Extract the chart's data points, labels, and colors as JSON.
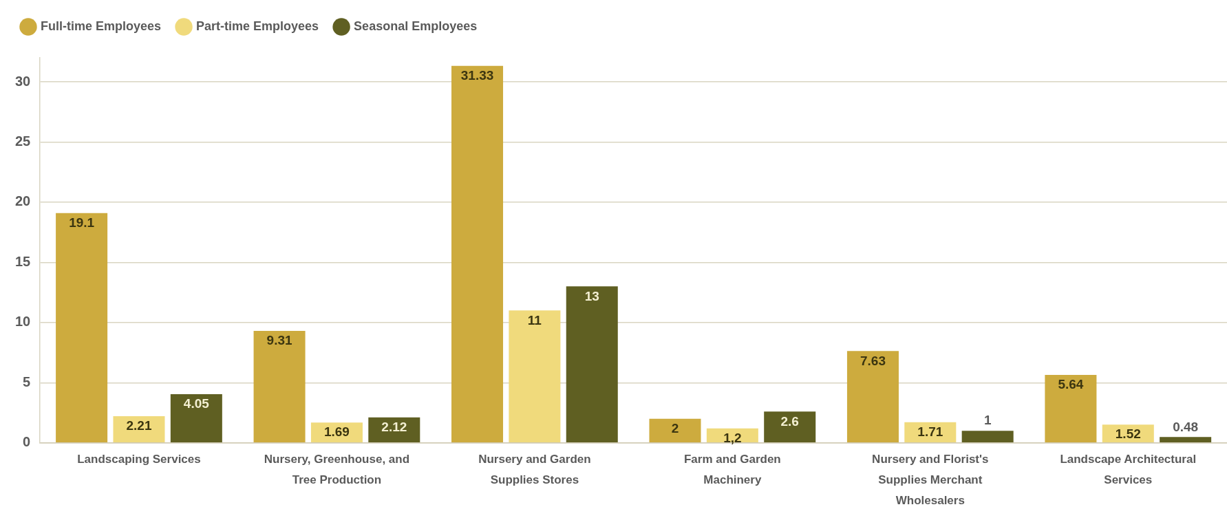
{
  "chart_data": {
    "type": "bar",
    "categories": [
      "Landscaping Services",
      "Nursery, Greenhouse, and Tree Production",
      "Nursery and Garden Supplies Stores",
      "Farm and Garden Machinery",
      "Nursery and Florist's Supplies Merchant Wholesalers",
      "Landscape Architectural Services"
    ],
    "series": [
      {
        "name": "Full-time Employees",
        "color": "#cdab3e",
        "values": [
          19.1,
          9.31,
          31.33,
          2,
          7.63,
          5.64
        ],
        "value_labels": [
          "19.1",
          "9.31",
          "31.33",
          "2",
          "7.63",
          "5.64"
        ]
      },
      {
        "name": "Part-time Employees",
        "color": "#f0da7c",
        "values": [
          2.21,
          1.69,
          11,
          1.2,
          1.71,
          1.52
        ],
        "value_labels": [
          "2.21",
          "1.69",
          "11",
          "1,2",
          "1.71",
          "1.52"
        ]
      },
      {
        "name": "Seasonal Employees",
        "color": "#5f5f22",
        "values": [
          4.05,
          2.12,
          13,
          2.6,
          1,
          0.48
        ],
        "value_labels": [
          "4.05",
          "2.12",
          "13",
          "2.6",
          "1",
          "0.48"
        ]
      }
    ],
    "ylim": [
      0,
      32
    ],
    "yticks": [
      0,
      5,
      10,
      15,
      20,
      25,
      30
    ],
    "grid": "y",
    "legend": "top left"
  }
}
